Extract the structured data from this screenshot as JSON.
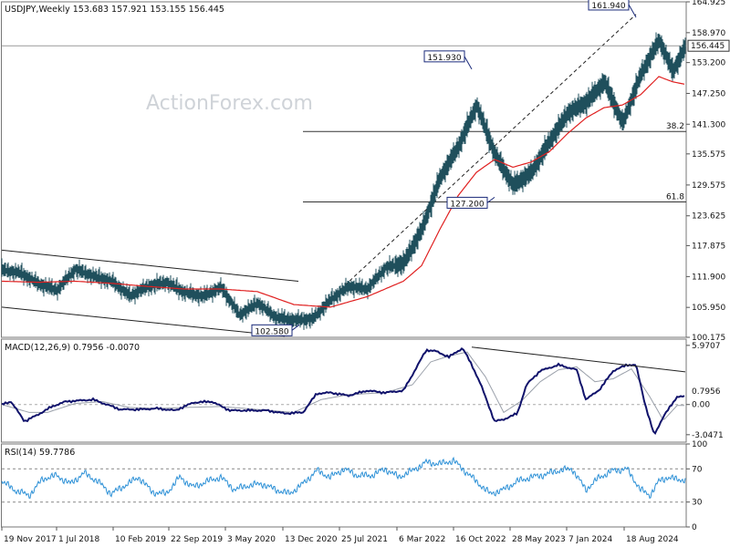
{
  "header": {
    "symbol": "USDJPY,Weekly",
    "ohlc": "153.683 157.921 153.155 156.445",
    "watermark": "ActionForex.com"
  },
  "chart_data": [
    {
      "type": "line",
      "name": "price",
      "ylim": [
        100.175,
        164.925
      ],
      "price_ticks": [
        "164.925",
        "158.970",
        "153.200",
        "147.250",
        "141.300",
        "135.575",
        "129.575",
        "123.625",
        "117.875",
        "111.900",
        "105.950",
        "100.175"
      ],
      "last_price": "156.445",
      "candles_series": {
        "name": "USDJPY weekly close (approx.)",
        "x_index_points": [
          0,
          20,
          40,
          60,
          80,
          100,
          120,
          140,
          160,
          180,
          200,
          220,
          240,
          260,
          280,
          300,
          320,
          340,
          360,
          380,
          400,
          420,
          440,
          460,
          480,
          500,
          520,
          540,
          560,
          580,
          600,
          620,
          640,
          660,
          680,
          700,
          720,
          735,
          749
        ],
        "values": [
          113.2,
          112.6,
          110.5,
          109.3,
          113.3,
          112.0,
          111.0,
          108.2,
          110.0,
          110.8,
          108.8,
          108.1,
          109.8,
          104.5,
          106.8,
          104.0,
          103.5,
          103.7,
          107.5,
          110.0,
          109.5,
          113.6,
          114.5,
          121.0,
          131.0,
          137.0,
          145.0,
          135.5,
          129.5,
          132.0,
          138.0,
          143.5,
          145.5,
          149.5,
          141.5,
          151.0,
          157.5,
          151.5,
          156.4
        ]
      },
      "moving_average": {
        "name": "40-week MA (approx.)",
        "x_index_points": [
          0,
          40,
          80,
          120,
          160,
          200,
          240,
          280,
          320,
          360,
          400,
          440,
          460,
          480,
          500,
          520,
          540,
          560,
          580,
          600,
          620,
          640,
          660,
          680,
          700,
          720,
          735,
          749
        ],
        "values": [
          111.0,
          110.8,
          111.0,
          110.6,
          110.0,
          109.5,
          109.5,
          109.0,
          106.5,
          106.0,
          108.0,
          111.0,
          114.0,
          121.0,
          127.5,
          132.0,
          134.5,
          133.0,
          134.0,
          136.0,
          139.5,
          142.5,
          144.5,
          145.0,
          147.0,
          150.5,
          149.5,
          149.0
        ]
      },
      "annotations": [
        {
          "label": "161.940",
          "value": 161.94
        },
        {
          "label": "151.930",
          "value": 151.93
        },
        {
          "label": "127.200",
          "value": 127.2
        },
        {
          "label": "102.580",
          "value": 102.58
        }
      ],
      "fib_levels": [
        {
          "label": "38.2",
          "value": 139.9
        },
        {
          "label": "61.8",
          "value": 126.3
        }
      ],
      "channel": {
        "upper": [
          {
            "x": 0,
            "y": 117.0
          },
          {
            "x": 325,
            "y": 111.0
          }
        ],
        "lower": [
          {
            "x": 0,
            "y": 106.0
          },
          {
            "x": 310,
            "y": 100.4
          }
        ]
      },
      "trend_dashed": [
        {
          "x": 335,
          "y": 103.5
        },
        {
          "x": 695,
          "y": 162.5
        }
      ]
    },
    {
      "type": "line",
      "name": "MACD",
      "title": "MACD(12,26,9) 0.7956 -0.0070",
      "ylim": [
        -3.8,
        6.6
      ],
      "ticks": [
        "5.9707",
        "0.00",
        "-3.0471"
      ],
      "zero_label": "0.00",
      "current_label": "0.7956",
      "macd_series": {
        "x_index_points": [
          0,
          10,
          25,
          40,
          55,
          70,
          85,
          100,
          115,
          130,
          150,
          170,
          190,
          210,
          230,
          250,
          270,
          290,
          310,
          330,
          345,
          360,
          380,
          400,
          420,
          440,
          450,
          465,
          475,
          490,
          505,
          515,
          525,
          540,
          550,
          565,
          575,
          590,
          610,
          630,
          640,
          655,
          670,
          685,
          695,
          705,
          715,
          725,
          735,
          740
        ],
        "values": [
          0.0,
          0.3,
          -1.7,
          -1.0,
          -0.2,
          0.3,
          0.4,
          0.5,
          0.0,
          -0.5,
          -0.5,
          -0.4,
          -0.6,
          0.2,
          0.3,
          -0.6,
          -0.6,
          -0.6,
          -0.9,
          -0.8,
          1.1,
          1.2,
          0.9,
          1.4,
          1.2,
          1.4,
          3.0,
          5.5,
          5.4,
          4.8,
          5.7,
          4.0,
          2.0,
          -1.7,
          -1.5,
          -0.9,
          2.0,
          3.4,
          4.0,
          3.5,
          0.5,
          1.5,
          3.4,
          4.0,
          4.0,
          0.0,
          -3.1,
          -1.2,
          0.1,
          0.8
        ]
      },
      "signal_series": {
        "x_index_points": [
          0,
          30,
          50,
          80,
          110,
          140,
          170,
          200,
          240,
          280,
          320,
          350,
          380,
          420,
          450,
          470,
          490,
          510,
          530,
          550,
          570,
          590,
          610,
          630,
          650,
          670,
          690,
          710,
          725,
          740
        ],
        "values": [
          0.0,
          -0.8,
          -0.8,
          0.1,
          0.3,
          -0.3,
          -0.4,
          -0.3,
          -0.2,
          -0.5,
          -0.8,
          0.5,
          1.0,
          1.2,
          2.0,
          4.3,
          4.9,
          5.3,
          2.8,
          -0.8,
          0.4,
          2.3,
          3.5,
          3.8,
          2.3,
          2.6,
          3.6,
          0.8,
          -1.6,
          -0.1
        ]
      },
      "trendline": [
        {
          "x": 515,
          "y": 5.8
        },
        {
          "x": 749,
          "y": 3.3
        }
      ]
    },
    {
      "type": "line",
      "name": "RSI",
      "title": "RSI(14) 59.7786",
      "ylim": [
        0,
        100
      ],
      "ticks": [
        "100",
        "70",
        "30",
        "0"
      ],
      "levels": [
        70,
        30
      ],
      "rsi_series": {
        "x_index_points": [
          0,
          15,
          30,
          45,
          60,
          75,
          90,
          105,
          120,
          135,
          150,
          165,
          180,
          195,
          210,
          225,
          240,
          255,
          270,
          285,
          300,
          315,
          330,
          345,
          360,
          375,
          390,
          405,
          420,
          435,
          450,
          465,
          480,
          495,
          505,
          520,
          535,
          550,
          565,
          580,
          595,
          610,
          625,
          640,
          655,
          670,
          685,
          700,
          710,
          720,
          730,
          740
        ],
        "values": [
          55,
          44,
          38,
          58,
          62,
          52,
          65,
          55,
          40,
          50,
          60,
          42,
          40,
          60,
          48,
          55,
          60,
          45,
          50,
          52,
          45,
          40,
          52,
          68,
          60,
          70,
          62,
          62,
          70,
          60,
          68,
          78,
          76,
          80,
          70,
          55,
          40,
          45,
          55,
          60,
          63,
          68,
          70,
          45,
          60,
          68,
          70,
          45,
          38,
          55,
          60,
          57
        ]
      }
    }
  ],
  "x_axis": {
    "labels": [
      "19 Nov 2017",
      "1 Jul 2018",
      "10 Feb 2019",
      "22 Sep 2019",
      "3 May 2020",
      "13 Dec 2020",
      "25 Jul 2021",
      "6 Mar 2022",
      "16 Oct 2022",
      "28 May 2023",
      "7 Jan 2024",
      "18 Aug 2024"
    ],
    "index_positions": [
      0,
      60,
      122,
      183,
      245,
      308,
      370,
      433,
      495,
      557,
      619,
      682
    ]
  },
  "colors": {
    "candle": "#1f4f5c",
    "ma": "#e02020",
    "macd": "#10126b",
    "signal": "#9aa0aa",
    "rsi": "#2a8fd6",
    "grid": "#cccccc"
  }
}
